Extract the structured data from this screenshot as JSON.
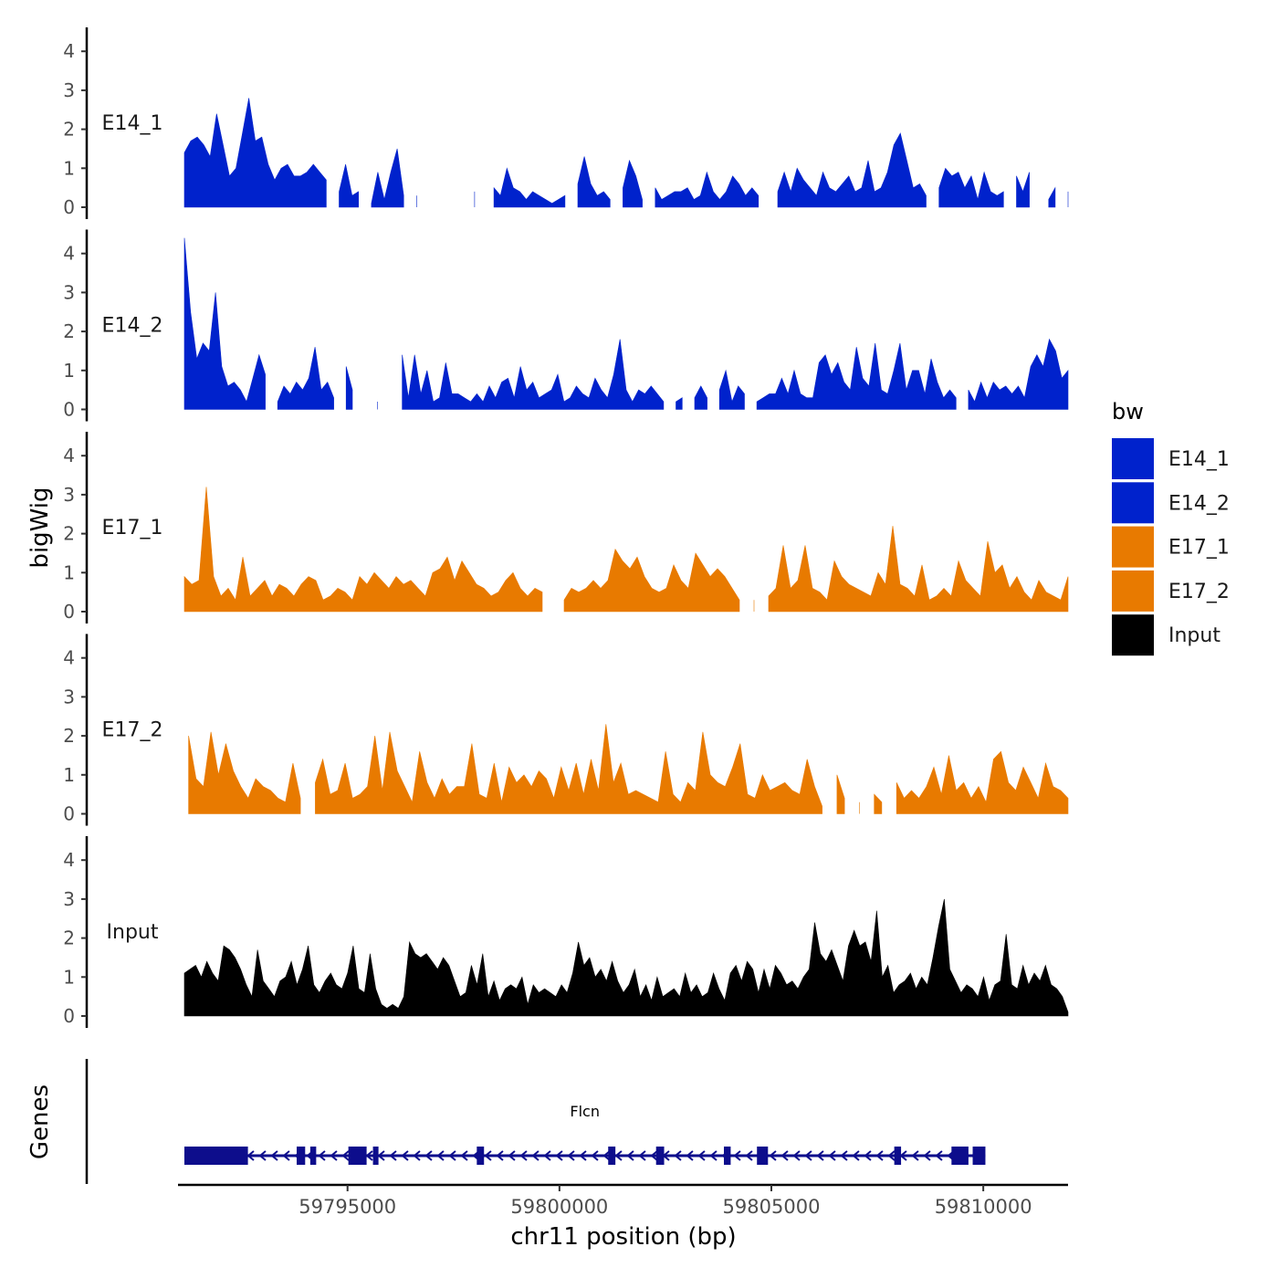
{
  "chart_data": {
    "type": "area",
    "ylabel": "bigWig",
    "xlabel": "chr11 position (bp)",
    "x_range": [
      59791000,
      59812000
    ],
    "x_ticks": [
      59795000,
      59800000,
      59805000,
      59810000
    ],
    "x_tick_labels": [
      "59795000",
      "59800000",
      "59805000",
      "59810000"
    ],
    "ylim": [
      0,
      4.5
    ],
    "y_ticks": [
      0,
      1,
      2,
      3,
      4
    ],
    "y_tick_labels": [
      "0",
      "1",
      "2",
      "3",
      "4"
    ],
    "legend": {
      "title": "bw",
      "position": "right",
      "entries": [
        {
          "label": "E14_1",
          "color": "#0022cc"
        },
        {
          "label": "E14_2",
          "color": "#0022cc"
        },
        {
          "label": "E17_1",
          "color": "#e87a00"
        },
        {
          "label": "E17_2",
          "color": "#e87a00"
        },
        {
          "label": "Input",
          "color": "#000000"
        }
      ]
    },
    "series": [
      {
        "name": "E14_1",
        "color": "#0022cc",
        "x_start": 59791150,
        "x_end": 59812000,
        "values": [
          1.4,
          1.7,
          1.8,
          1.6,
          1.3,
          2.4,
          1.6,
          0.8,
          1.0,
          1.9,
          2.8,
          1.7,
          1.8,
          1.1,
          0.7,
          1.0,
          1.1,
          0.8,
          0.8,
          0.9,
          1.1,
          0.9,
          0.7,
          null,
          0.4,
          1.1,
          0.3,
          0.4,
          null,
          0.1,
          0.9,
          0.2,
          0.9,
          1.5,
          0.3,
          null,
          0.3,
          null,
          null,
          null,
          null,
          null,
          null,
          null,
          null,
          0.4,
          null,
          null,
          0.5,
          0.3,
          1.0,
          0.5,
          0.4,
          0.2,
          0.4,
          0.3,
          0.2,
          0.1,
          0.2,
          0.3,
          null,
          0.6,
          1.3,
          0.6,
          0.3,
          0.4,
          0.2,
          null,
          0.5,
          1.2,
          0.8,
          0.2,
          null,
          0.5,
          0.2,
          0.3,
          0.4,
          0.4,
          0.5,
          0.2,
          0.3,
          0.9,
          0.4,
          0.2,
          0.4,
          0.8,
          0.6,
          0.3,
          0.5,
          0.3,
          null,
          null,
          0.4,
          0.9,
          0.4,
          1.0,
          0.7,
          0.5,
          0.3,
          0.9,
          0.5,
          0.4,
          0.6,
          0.8,
          0.4,
          0.5,
          1.2,
          0.4,
          0.5,
          0.9,
          1.6,
          1.9,
          1.2,
          0.5,
          0.6,
          0.3,
          null,
          0.5,
          1.0,
          0.8,
          0.9,
          0.5,
          0.8,
          0.2,
          0.9,
          0.4,
          0.3,
          0.4,
          null,
          0.8,
          0.4,
          0.9,
          null,
          null,
          0.2,
          0.5,
          null,
          0.4
        ],
        "label": "E14_1"
      },
      {
        "name": "E14_2",
        "color": "#0022cc",
        "x_start": 59791150,
        "x_end": 59812000,
        "values": [
          4.4,
          2.5,
          1.3,
          1.7,
          1.5,
          3.0,
          1.1,
          0.6,
          0.7,
          0.5,
          0.2,
          0.8,
          1.4,
          0.9,
          null,
          0.2,
          0.6,
          0.4,
          0.7,
          0.5,
          0.8,
          1.6,
          0.5,
          0.7,
          0.3,
          null,
          1.1,
          0.5,
          null,
          null,
          null,
          0.2,
          null,
          null,
          null,
          1.4,
          0.3,
          1.4,
          0.4,
          1.0,
          0.2,
          0.3,
          1.2,
          0.4,
          0.4,
          0.3,
          0.2,
          0.4,
          0.2,
          0.6,
          0.3,
          0.7,
          0.8,
          0.3,
          1.1,
          0.5,
          0.7,
          0.3,
          0.4,
          0.5,
          0.9,
          0.2,
          0.3,
          0.6,
          0.4,
          0.3,
          0.8,
          0.5,
          0.3,
          0.9,
          1.8,
          0.5,
          0.2,
          0.5,
          0.4,
          0.6,
          0.4,
          0.2,
          null,
          0.2,
          0.3,
          null,
          0.3,
          0.6,
          0.3,
          null,
          0.5,
          1.0,
          0.2,
          0.6,
          0.4,
          null,
          0.2,
          0.3,
          0.4,
          0.4,
          0.8,
          0.4,
          1.0,
          0.4,
          0.3,
          0.3,
          1.2,
          1.4,
          0.9,
          1.2,
          0.7,
          0.5,
          1.6,
          0.8,
          0.6,
          1.7,
          0.5,
          0.4,
          1.0,
          1.7,
          0.5,
          1.0,
          1.0,
          0.4,
          1.3,
          0.7,
          0.3,
          0.5,
          0.3,
          null,
          0.5,
          0.2,
          0.7,
          0.3,
          0.7,
          0.5,
          0.6,
          0.4,
          0.6,
          0.3,
          1.1,
          1.4,
          1.1,
          1.8,
          1.5,
          0.8,
          1.0
        ],
        "label": "E14_2"
      },
      {
        "name": "E17_1",
        "color": "#e87a00",
        "x_start": 59791150,
        "x_end": 59812000,
        "values": [
          0.9,
          0.7,
          0.8,
          3.2,
          0.9,
          0.4,
          0.6,
          0.3,
          1.4,
          0.4,
          0.6,
          0.8,
          0.4,
          0.7,
          0.6,
          0.4,
          0.7,
          0.9,
          0.8,
          0.3,
          0.4,
          0.6,
          0.5,
          0.3,
          0.9,
          0.7,
          1.0,
          0.8,
          0.6,
          0.9,
          0.7,
          0.8,
          0.6,
          0.4,
          1.0,
          1.1,
          1.4,
          0.8,
          1.3,
          1.0,
          0.7,
          0.6,
          0.4,
          0.5,
          0.8,
          1.0,
          0.6,
          0.4,
          0.6,
          0.5,
          null,
          null,
          0.3,
          0.6,
          0.5,
          0.6,
          0.8,
          0.6,
          0.8,
          1.6,
          1.3,
          1.1,
          1.4,
          0.9,
          0.6,
          0.5,
          0.6,
          1.2,
          0.8,
          0.6,
          1.5,
          1.2,
          0.9,
          1.1,
          0.9,
          0.6,
          0.3,
          null,
          0.3,
          null,
          0.4,
          0.6,
          1.7,
          0.6,
          0.8,
          1.7,
          0.6,
          0.5,
          0.3,
          1.3,
          0.9,
          0.7,
          0.6,
          0.5,
          0.4,
          1.0,
          0.7,
          2.2,
          0.7,
          0.6,
          0.4,
          1.2,
          0.3,
          0.4,
          0.6,
          0.4,
          1.3,
          0.8,
          0.6,
          0.4,
          1.8,
          1.0,
          1.2,
          0.6,
          0.9,
          0.5,
          0.3,
          0.8,
          0.5,
          0.4,
          0.3,
          0.9
        ],
        "label": "E17_1"
      },
      {
        "name": "E17_2",
        "color": "#e87a00",
        "x_start": 59791250,
        "x_end": 59812000,
        "values": [
          2.0,
          0.9,
          0.7,
          2.1,
          1.0,
          1.8,
          1.1,
          0.7,
          0.4,
          0.9,
          0.7,
          0.6,
          0.4,
          0.3,
          1.3,
          0.4,
          null,
          0.8,
          1.4,
          0.5,
          0.6,
          1.3,
          0.4,
          0.5,
          0.7,
          2.0,
          0.6,
          2.1,
          1.1,
          0.7,
          0.3,
          1.6,
          0.8,
          0.4,
          0.9,
          0.5,
          0.7,
          0.7,
          1.8,
          0.5,
          0.4,
          1.3,
          0.3,
          1.2,
          0.8,
          1.0,
          0.7,
          1.1,
          0.9,
          0.4,
          1.2,
          0.6,
          1.3,
          0.5,
          1.4,
          0.6,
          2.3,
          0.8,
          1.3,
          0.5,
          0.6,
          0.5,
          0.4,
          0.3,
          1.6,
          0.5,
          0.3,
          0.8,
          0.6,
          2.1,
          1.0,
          0.8,
          0.7,
          1.2,
          1.8,
          0.5,
          0.4,
          1.0,
          0.6,
          0.7,
          0.8,
          0.6,
          0.5,
          1.4,
          0.7,
          0.2,
          null,
          1.0,
          0.4,
          null,
          0.3,
          null,
          0.5,
          0.3,
          null,
          0.8,
          0.4,
          0.6,
          0.4,
          0.7,
          1.2,
          0.5,
          1.5,
          0.6,
          0.8,
          0.4,
          0.7,
          0.3,
          1.4,
          1.6,
          0.8,
          0.6,
          1.2,
          0.8,
          0.4,
          1.3,
          0.7,
          0.6,
          0.4
        ],
        "label": "E17_2"
      },
      {
        "name": "Input",
        "color": "#000000",
        "x_start": 59791150,
        "x_end": 59812000,
        "values": [
          1.1,
          1.2,
          1.3,
          1.0,
          1.4,
          1.1,
          0.9,
          1.8,
          1.7,
          1.5,
          1.2,
          0.8,
          0.5,
          1.7,
          0.9,
          0.7,
          0.5,
          0.9,
          1.0,
          1.4,
          0.8,
          1.2,
          1.8,
          0.8,
          0.6,
          0.9,
          1.1,
          0.8,
          0.7,
          1.1,
          1.8,
          0.7,
          0.6,
          1.6,
          0.7,
          0.3,
          0.2,
          0.3,
          0.2,
          0.5,
          1.9,
          1.6,
          1.5,
          1.6,
          1.4,
          1.2,
          1.5,
          1.3,
          0.9,
          0.5,
          0.6,
          1.3,
          0.8,
          1.6,
          0.5,
          0.9,
          0.4,
          0.7,
          0.8,
          0.7,
          1.0,
          0.3,
          0.8,
          0.6,
          0.7,
          0.6,
          0.5,
          0.8,
          0.6,
          1.1,
          1.9,
          1.3,
          1.5,
          1.0,
          1.2,
          0.9,
          1.4,
          0.9,
          0.6,
          0.8,
          1.2,
          0.5,
          0.8,
          0.4,
          1.0,
          0.5,
          0.6,
          0.7,
          0.5,
          1.1,
          0.6,
          0.8,
          0.5,
          0.6,
          1.1,
          0.7,
          0.4,
          1.1,
          1.3,
          0.9,
          1.4,
          1.2,
          0.6,
          1.2,
          0.7,
          1.3,
          1.1,
          0.8,
          0.9,
          0.7,
          1.0,
          1.2,
          2.4,
          1.6,
          1.4,
          1.7,
          1.3,
          0.9,
          1.8,
          2.2,
          1.8,
          1.9,
          1.4,
          2.7,
          1.0,
          1.3,
          0.6,
          0.8,
          0.9,
          1.1,
          0.7,
          1.0,
          0.8,
          1.5,
          2.3,
          3.0,
          1.2,
          0.9,
          0.6,
          0.8,
          0.7,
          0.5,
          1.0,
          0.4,
          0.8,
          0.9,
          2.1,
          0.8,
          0.7,
          1.3,
          0.8,
          1.1,
          0.9,
          1.3,
          0.8,
          0.7,
          0.5,
          0.1
        ],
        "label": "Input"
      }
    ],
    "genes_track": {
      "label": "Genes",
      "gene_name": "Flcn",
      "strand": "-",
      "start": 59791150,
      "end": 59810050,
      "exons": [
        [
          59791150,
          59792650
        ],
        [
          59793800,
          59794000
        ],
        [
          59794120,
          59794260
        ],
        [
          59795020,
          59795450
        ],
        [
          59795600,
          59795730
        ],
        [
          59798050,
          59798220
        ],
        [
          59801150,
          59801320
        ],
        [
          59802280,
          59802470
        ],
        [
          59803880,
          59804040
        ],
        [
          59804660,
          59804920
        ],
        [
          59807900,
          59808060
        ],
        [
          59809250,
          59809650
        ],
        [
          59809750,
          59810050
        ]
      ],
      "color": "#0d0d8c"
    }
  }
}
